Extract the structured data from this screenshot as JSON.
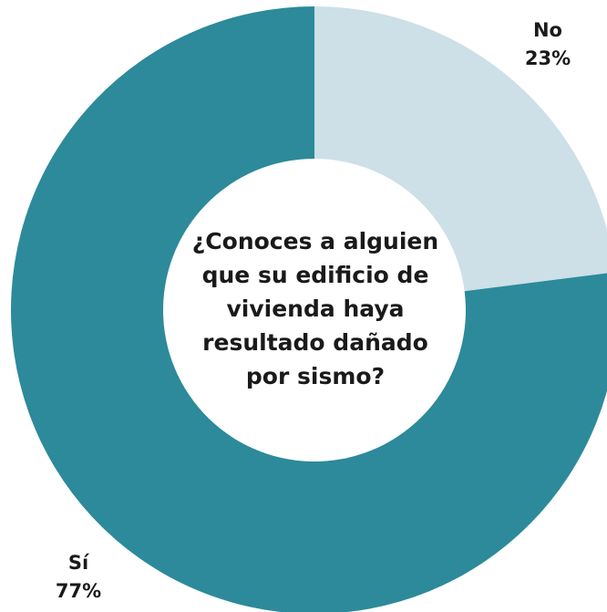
{
  "chart_data": {
    "type": "pie",
    "variant": "donut",
    "title": "¿Conoces a alguien\nque su edificio de\nvivienda haya\nresultado dañado\npor sismo?",
    "slices": [
      {
        "label": "No",
        "value": 23,
        "value_label": "23%",
        "color": "#cddfe7"
      },
      {
        "label": "Sí",
        "value": 77,
        "value_label": "77%",
        "color": "#2c8a9a"
      }
    ],
    "start": "12 o'clock",
    "direction": "clockwise",
    "legend": "none"
  }
}
